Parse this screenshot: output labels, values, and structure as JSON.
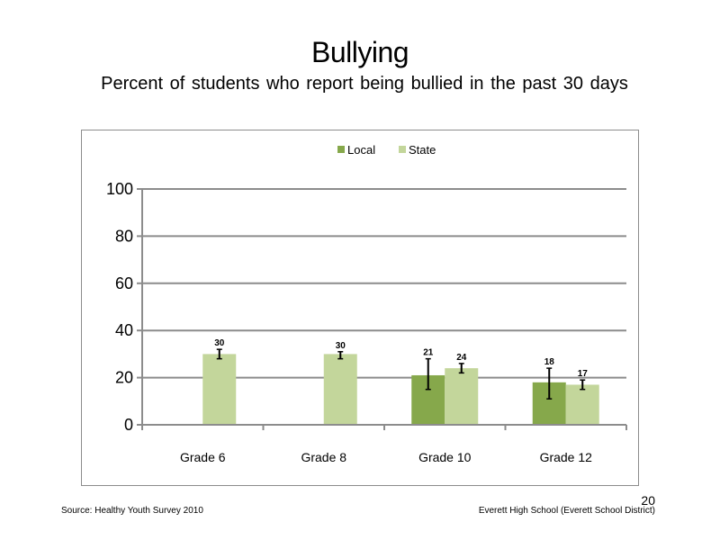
{
  "slide": {
    "title": "Bullying",
    "subtitle": "Percent of students who report being bullied in the past 30 days",
    "source": "Source: Healthy Youth Survey 2010",
    "school": "Everett High School (Everett School District)",
    "page_number": "20"
  },
  "chart_data": {
    "type": "bar",
    "title": "",
    "xlabel": "",
    "ylabel": "",
    "categories": [
      "Grade 6",
      "Grade 8",
      "Grade 10",
      "Grade 12"
    ],
    "ylim": [
      0,
      100
    ],
    "yticks": [
      0,
      20,
      40,
      60,
      80,
      100
    ],
    "grid": true,
    "legend_position": "top",
    "series": [
      {
        "name": "Local",
        "color": "#86a84b",
        "values": [
          null,
          null,
          21,
          18
        ],
        "labels": [
          "",
          "",
          "21",
          "18"
        ],
        "error_low": [
          null,
          null,
          15,
          11
        ],
        "error_high": [
          null,
          null,
          28,
          24
        ]
      },
      {
        "name": "State",
        "color": "#c3d69b",
        "values": [
          30,
          30,
          24,
          17
        ],
        "labels": [
          "30",
          "30",
          "24",
          "17"
        ],
        "error_low": [
          28,
          28,
          22,
          15
        ],
        "error_high": [
          32,
          31,
          26,
          19
        ]
      }
    ]
  }
}
